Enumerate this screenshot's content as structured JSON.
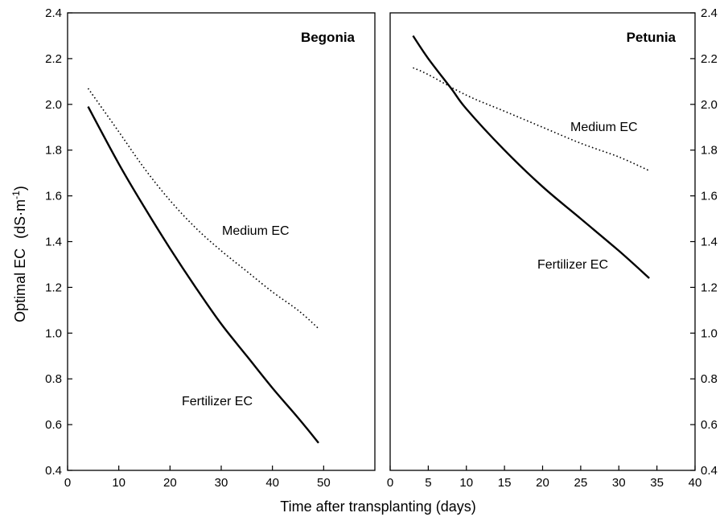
{
  "chart_data": [
    {
      "type": "line",
      "title": "Begonia",
      "ylabel_prefix": "Optimal EC",
      "ylabel_unit": "(dS·m",
      "ylabel_exp": "-1",
      "ylabel_close": ")",
      "xlim": [
        0,
        60
      ],
      "ylim": [
        0.4,
        2.4
      ],
      "x_ticks": [
        "0",
        "10",
        "20",
        "30",
        "40",
        "50"
      ],
      "y_ticks": [
        "0.4",
        "0.6",
        "0.8",
        "1.0",
        "1.2",
        "1.4",
        "1.6",
        "1.8",
        "2.0",
        "2.2",
        "2.4"
      ],
      "grid": false,
      "series": [
        {
          "name": "Fertilizer EC",
          "style": "solid",
          "x": [
            4,
            10,
            15,
            20,
            25,
            30,
            35,
            40,
            45,
            49
          ],
          "y": [
            1.99,
            1.74,
            1.55,
            1.37,
            1.2,
            1.04,
            0.9,
            0.76,
            0.63,
            0.52
          ]
        },
        {
          "name": "Medium EC",
          "style": "dotted",
          "x": [
            4,
            10,
            15,
            20,
            25,
            30,
            35,
            40,
            45,
            49
          ],
          "y": [
            2.07,
            1.88,
            1.72,
            1.58,
            1.46,
            1.36,
            1.27,
            1.18,
            1.1,
            1.02
          ]
        }
      ]
    },
    {
      "type": "line",
      "title": "Petunia",
      "xlim": [
        0,
        40
      ],
      "ylim": [
        0.4,
        2.4
      ],
      "x_ticks": [
        "0",
        "5",
        "10",
        "15",
        "20",
        "25",
        "30",
        "35",
        "40"
      ],
      "y_ticks": [
        "0.4",
        "0.6",
        "0.8",
        "1.0",
        "1.2",
        "1.4",
        "1.6",
        "1.8",
        "2.0",
        "2.2",
        "2.4"
      ],
      "grid": false,
      "series": [
        {
          "name": "Fertilizer EC",
          "style": "solid",
          "x": [
            3,
            5,
            8,
            10,
            15,
            20,
            25,
            30,
            34
          ],
          "y": [
            2.3,
            2.2,
            2.07,
            1.98,
            1.8,
            1.64,
            1.5,
            1.36,
            1.24
          ]
        },
        {
          "name": "Medium EC",
          "style": "dotted",
          "x": [
            3,
            5,
            10,
            15,
            20,
            25,
            30,
            34
          ],
          "y": [
            2.16,
            2.13,
            2.04,
            1.97,
            1.9,
            1.83,
            1.77,
            1.71
          ]
        }
      ]
    }
  ],
  "xlabel": "Time after transplanting (days)",
  "colors": {
    "line": "#000000",
    "axes": "#000000",
    "background": "#ffffff"
  }
}
